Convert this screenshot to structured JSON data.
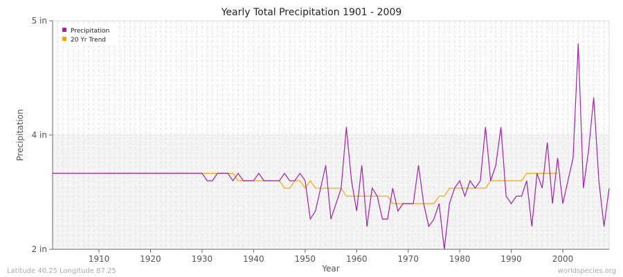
{
  "chart_data": {
    "type": "line",
    "title": "Yearly Total Precipitation 1901 - 2009",
    "xlabel": "Year",
    "ylabel": "Precipitation",
    "xlim": [
      1901,
      2009
    ],
    "y_ticks": [
      {
        "value": 2,
        "label": "2 in"
      },
      {
        "value": 4,
        "label": "4 in"
      },
      {
        "value": 5,
        "label": "5 in"
      }
    ],
    "x_ticks": [
      1910,
      1920,
      1930,
      1940,
      1950,
      1960,
      1970,
      1980,
      1990,
      2000
    ],
    "grid": true,
    "legend_placement": "top-left",
    "series": [
      {
        "name": "Precipitation",
        "color": "#a020a8",
        "start_year": 1901,
        "values": [
          3.33,
          3.33,
          3.33,
          3.33,
          3.33,
          3.33,
          3.33,
          3.33,
          3.33,
          3.33,
          3.33,
          3.33,
          3.33,
          3.33,
          3.33,
          3.33,
          3.33,
          3.33,
          3.33,
          3.33,
          3.33,
          3.33,
          3.33,
          3.33,
          3.33,
          3.33,
          3.33,
          3.33,
          3.33,
          3.33,
          3.2,
          3.2,
          3.33,
          3.33,
          3.33,
          3.2,
          3.33,
          3.2,
          3.2,
          3.2,
          3.33,
          3.2,
          3.2,
          3.2,
          3.2,
          3.33,
          3.2,
          3.2,
          3.33,
          3.2,
          2.53,
          2.67,
          3.07,
          3.47,
          2.53,
          2.8,
          3.07,
          4.07,
          3.2,
          2.67,
          3.47,
          2.4,
          3.07,
          2.93,
          2.53,
          2.53,
          3.07,
          2.67,
          2.8,
          2.8,
          2.8,
          3.47,
          2.8,
          2.4,
          2.53,
          2.8,
          2.0,
          2.8,
          3.07,
          3.2,
          2.93,
          3.2,
          3.07,
          3.2,
          4.07,
          3.2,
          3.47,
          4.07,
          2.93,
          2.8,
          2.93,
          2.93,
          3.2,
          2.4,
          3.33,
          3.07,
          3.87,
          2.8,
          3.6,
          2.8,
          3.2,
          3.6,
          4.8,
          3.07,
          3.73,
          4.33,
          3.2,
          2.4,
          3.07
        ]
      },
      {
        "name": "20 Yr Trend",
        "color": "#ffa500",
        "start_year": 1911,
        "values": [
          3.33,
          3.33,
          3.33,
          3.33,
          3.33,
          3.33,
          3.33,
          3.33,
          3.33,
          3.33,
          3.33,
          3.33,
          3.33,
          3.33,
          3.33,
          3.33,
          3.33,
          3.33,
          3.33,
          3.33,
          3.33,
          3.33,
          3.33,
          3.33,
          3.33,
          3.33,
          3.2,
          3.2,
          3.2,
          3.2,
          3.2,
          3.2,
          3.2,
          3.2,
          3.2,
          3.07,
          3.07,
          3.2,
          3.2,
          3.07,
          3.2,
          3.07,
          3.07,
          3.07,
          3.07,
          3.07,
          3.07,
          2.93,
          2.93,
          2.93,
          2.93,
          2.93,
          2.93,
          2.93,
          2.93,
          2.93,
          2.8,
          2.8,
          2.8,
          2.8,
          2.8,
          2.8,
          2.8,
          2.8,
          2.8,
          2.93,
          2.93,
          3.07,
          3.07,
          3.07,
          3.07,
          3.07,
          3.07,
          3.07,
          3.07,
          3.2,
          3.2,
          3.2,
          3.2,
          3.2,
          3.2,
          3.2,
          3.33,
          3.33,
          3.33,
          3.33,
          3.33,
          3.33,
          3.33
        ]
      }
    ]
  },
  "footer": {
    "location": "Latitude 40.25 Longitude 87.25",
    "credit": "worldspecies.org"
  }
}
